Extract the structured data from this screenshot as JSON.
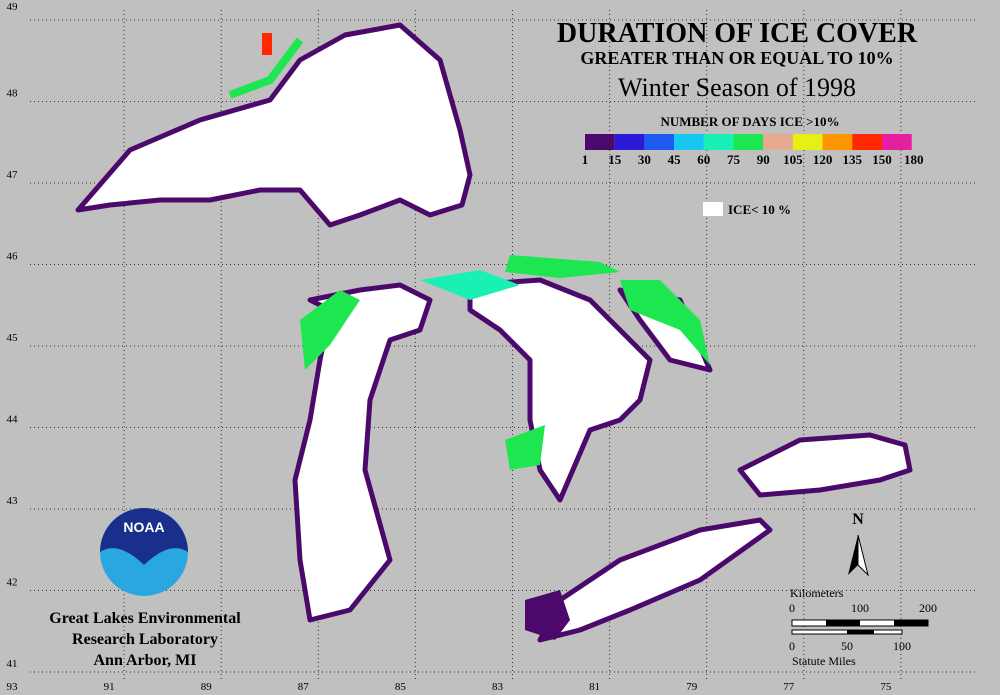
{
  "title": "DURATION OF ICE COVER",
  "subtitle": "GREATER THAN OR EQUAL TO 10%",
  "season": "Winter Season of 1998",
  "legend": {
    "title": "NUMBER OF DAYS ICE >10%",
    "colors": [
      "#4b0a6b",
      "#2a1ad8",
      "#1e5af0",
      "#14c8f0",
      "#19f0b4",
      "#1ee650",
      "#e6aa8c",
      "#e6f014",
      "#ff9600",
      "#ff2800",
      "#e61ea0"
    ],
    "labels": [
      "1",
      "15",
      "30",
      "45",
      "60",
      "75",
      "90",
      "105",
      "120",
      "135",
      "150",
      "180"
    ],
    "no_ice_label": "ICE< 10 %"
  },
  "lat_labels": [
    "49",
    "48",
    "47",
    "46",
    "45",
    "44",
    "43",
    "42",
    "41"
  ],
  "lon_labels": [
    "93",
    "91",
    "89",
    "87",
    "85",
    "83",
    "81",
    "79",
    "77",
    "75"
  ],
  "north": "N",
  "scale": {
    "km_title": "Kilometers",
    "km_labels": [
      "0",
      "100",
      "200"
    ],
    "mi_labels": [
      "0",
      "50",
      "100"
    ],
    "mi_title": "Statute Miles"
  },
  "logo": "NOAA",
  "lab": [
    "Great Lakes Environmental",
    "Research Laboratory",
    "Ann Arbor, MI"
  ]
}
